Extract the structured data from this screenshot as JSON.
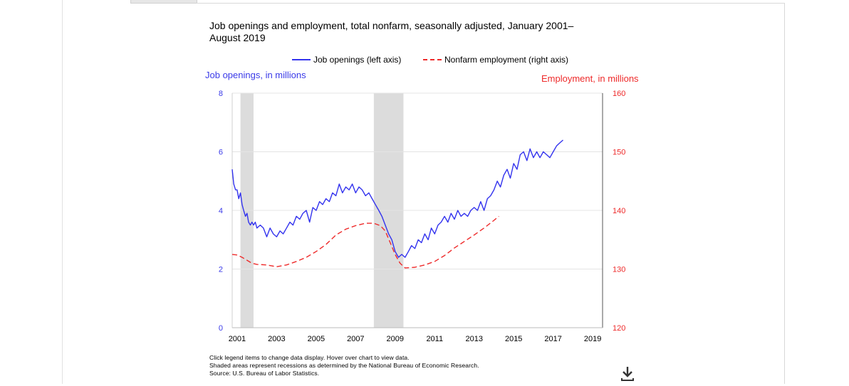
{
  "chart_data": {
    "type": "line",
    "title": "Job openings and employment, total nonfarm, seasonally adjusted, January 2001–August 2019",
    "ylabel_left": "Job openings, in millions",
    "ylabel_right": "Employment, in millions",
    "ylim_left": [
      0,
      8
    ],
    "ylim_right": [
      120,
      160
    ],
    "xlim": [
      2000.75,
      2019.5
    ],
    "yticks_left": [
      "0",
      "2",
      "4",
      "6",
      "8"
    ],
    "yticks_right": [
      "120",
      "130",
      "140",
      "150",
      "160"
    ],
    "xticks": [
      "2001",
      "2003",
      "2005",
      "2007",
      "2009",
      "2011",
      "2013",
      "2015",
      "2017",
      "2019"
    ],
    "grid": true,
    "legend_position": "top",
    "recessions": [
      [
        2001.17,
        2001.83
      ],
      [
        2007.92,
        2009.42
      ]
    ],
    "series": [
      {
        "name": "Job openings (left axis)",
        "axis": "left",
        "color": "#3333ee",
        "style": "solid",
        "x": [
          2000.75,
          2000.83,
          2000.92,
          2001.0,
          2001.08,
          2001.17,
          2001.25,
          2001.33,
          2001.42,
          2001.5,
          2001.58,
          2001.67,
          2001.75,
          2001.83,
          2001.92,
          2002.0,
          2002.17,
          2002.33,
          2002.5,
          2002.67,
          2002.83,
          2003.0,
          2003.17,
          2003.33,
          2003.5,
          2003.67,
          2003.83,
          2004.0,
          2004.17,
          2004.33,
          2004.5,
          2004.67,
          2004.83,
          2005.0,
          2005.17,
          2005.33,
          2005.5,
          2005.67,
          2005.83,
          2006.0,
          2006.17,
          2006.33,
          2006.5,
          2006.67,
          2006.83,
          2007.0,
          2007.17,
          2007.33,
          2007.5,
          2007.67,
          2007.83,
          2008.0,
          2008.17,
          2008.33,
          2008.5,
          2008.67,
          2008.83,
          2009.0,
          2009.17,
          2009.33,
          2009.5,
          2009.67,
          2009.83,
          2010.0,
          2010.17,
          2010.33,
          2010.5,
          2010.67,
          2010.83,
          2011.0,
          2011.17,
          2011.33,
          2011.5,
          2011.67,
          2011.83,
          2012.0,
          2012.17,
          2012.33,
          2012.5,
          2012.67,
          2012.83,
          2013.0,
          2013.17,
          2013.33,
          2013.5,
          2013.67,
          2013.83,
          2014.0,
          2014.17,
          2014.33,
          2014.5,
          2014.67,
          2014.83,
          2015.0,
          2015.17,
          2015.33,
          2015.5,
          2015.67,
          2015.83,
          2016.0,
          2016.17,
          2016.33,
          2016.5,
          2016.67,
          2016.83,
          2017.0,
          2017.17,
          2017.33,
          2017.5
        ],
        "values": [
          5.4,
          4.9,
          4.7,
          4.7,
          4.4,
          4.6,
          4.2,
          4.0,
          3.8,
          3.9,
          3.6,
          3.5,
          3.6,
          3.5,
          3.6,
          3.4,
          3.5,
          3.4,
          3.1,
          3.4,
          3.2,
          3.1,
          3.3,
          3.2,
          3.4,
          3.6,
          3.5,
          3.8,
          3.7,
          3.9,
          4.0,
          3.6,
          4.1,
          4.0,
          4.3,
          4.2,
          4.4,
          4.3,
          4.6,
          4.5,
          4.9,
          4.6,
          4.8,
          4.7,
          4.9,
          4.6,
          4.8,
          4.7,
          4.5,
          4.6,
          4.4,
          4.2,
          4.0,
          3.8,
          3.5,
          3.2,
          3.0,
          2.6,
          2.4,
          2.5,
          2.4,
          2.6,
          2.8,
          2.7,
          3.0,
          2.9,
          3.2,
          3.0,
          3.4,
          3.2,
          3.5,
          3.6,
          3.8,
          3.6,
          3.9,
          3.7,
          4.0,
          3.8,
          3.9,
          3.8,
          4.0,
          4.1,
          4.0,
          4.3,
          4.0,
          4.4,
          4.5,
          4.7,
          5.0,
          4.8,
          5.2,
          5.4,
          5.1,
          5.6,
          5.4,
          5.9,
          6.0,
          5.7,
          6.1,
          5.8,
          6.0,
          5.8,
          6.0,
          5.9,
          5.8,
          6.0,
          6.2,
          6.3,
          6.4
        ]
      },
      {
        "name": "Nonfarm employment (right axis)",
        "axis": "right",
        "color": "#ee2a2a",
        "style": "dashed",
        "x": [
          2000.75,
          2001.0,
          2001.25,
          2001.5,
          2001.75,
          2002.0,
          2002.5,
          2003.0,
          2003.5,
          2004.0,
          2004.5,
          2005.0,
          2005.5,
          2006.0,
          2006.5,
          2007.0,
          2007.5,
          2007.92,
          2008.25,
          2008.5,
          2008.75,
          2009.0,
          2009.25,
          2009.5,
          2010.0,
          2010.5,
          2011.0,
          2011.5,
          2012.0,
          2012.5,
          2013.0,
          2013.5,
          2014.0,
          2014.25
        ],
        "values": [
          132.5,
          132.4,
          132.0,
          131.5,
          131.0,
          130.8,
          130.7,
          130.4,
          130.7,
          131.3,
          132.0,
          133.0,
          134.2,
          135.8,
          136.8,
          137.4,
          137.8,
          137.8,
          137.4,
          136.5,
          134.5,
          132.5,
          131.0,
          130.2,
          130.3,
          130.7,
          131.3,
          132.3,
          133.6,
          134.7,
          135.8,
          137.0,
          138.3,
          139.0
        ]
      }
    ],
    "notes": [
      "Click legend items to change data display. Hover over chart to view data.",
      "Shaded areas represent recessions as determined by the National Bureau of Economic Research.",
      "Source: U.S. Bureau of Labor Statistics."
    ]
  },
  "download_icon": "download-icon"
}
